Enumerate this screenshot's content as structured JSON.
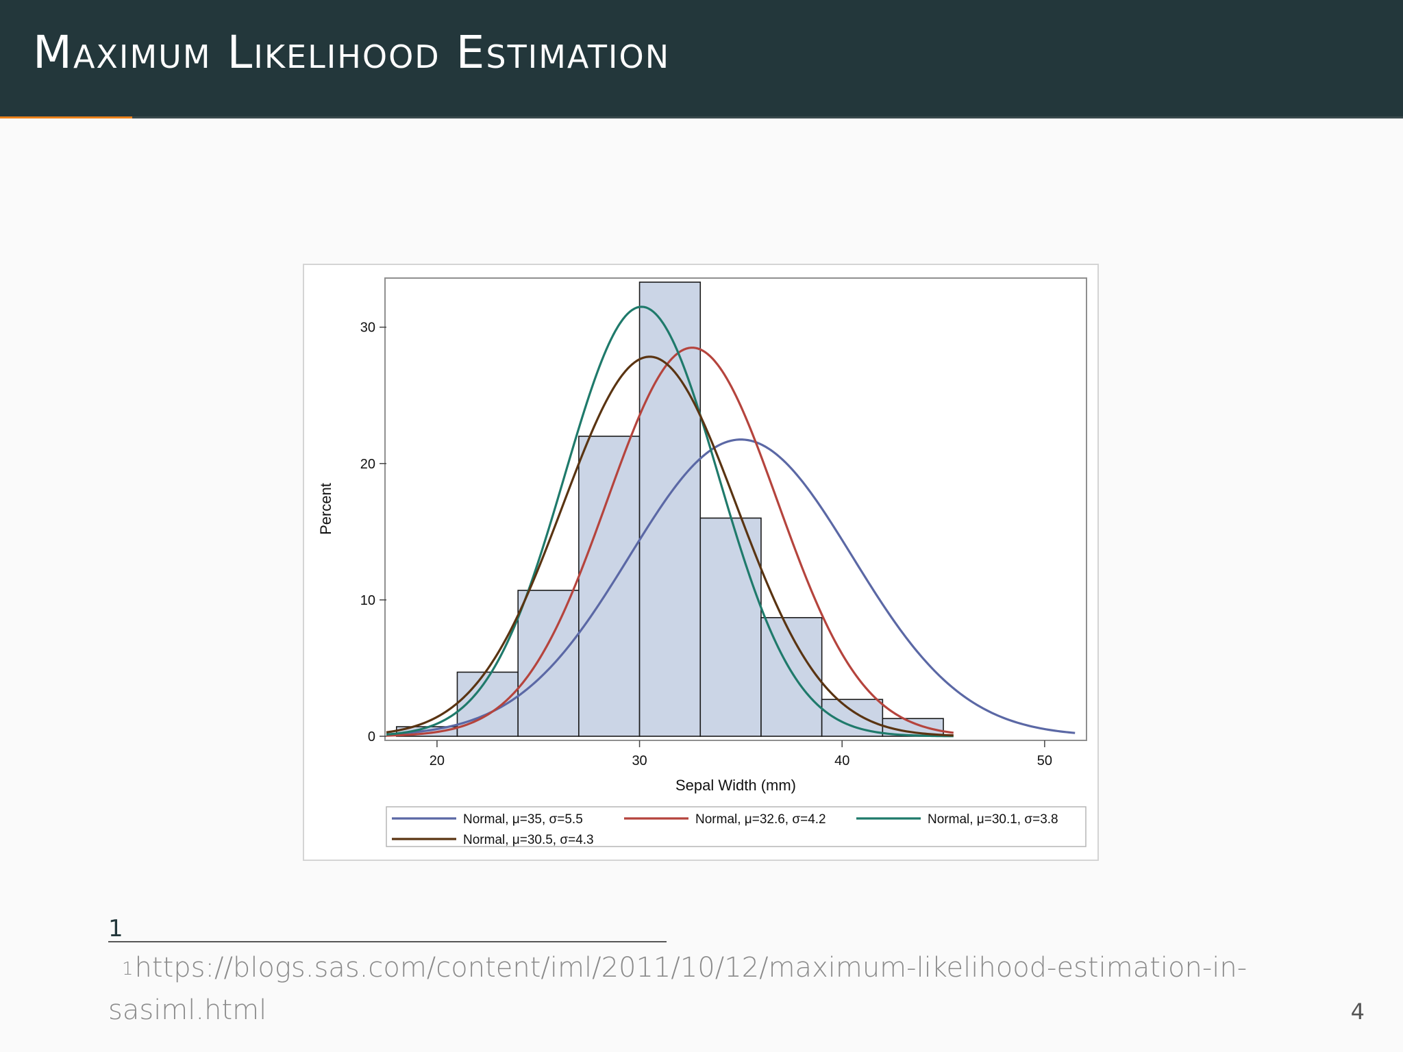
{
  "slide": {
    "title": "Maximum Likelihood Estimation",
    "page_number": "4"
  },
  "footnote": {
    "marker": "1",
    "superscript": "1",
    "text": "https://blogs.sas.com/content/iml/2011/10/12/maximum-likelihood-estimation-in-sasiml.html"
  },
  "colors": {
    "title_bar": "#23373b",
    "progress_accent": "#eb811b",
    "bar_fill": "#cbd5e6"
  },
  "chart_data": {
    "type": "bar",
    "title": "",
    "xlabel": "Sepal Width (mm)",
    "ylabel": "Percent",
    "xlim": [
      17.5,
      52
    ],
    "ylim": [
      0,
      33.5
    ],
    "xticks": [
      20,
      30,
      40,
      50
    ],
    "yticks": [
      0,
      10,
      20,
      30
    ],
    "bin_width": 3,
    "bins": [
      {
        "start": 18,
        "end": 21,
        "value": 0.7
      },
      {
        "start": 21,
        "end": 24,
        "value": 4.7
      },
      {
        "start": 24,
        "end": 27,
        "value": 10.7
      },
      {
        "start": 27,
        "end": 30,
        "value": 22.0
      },
      {
        "start": 30,
        "end": 33,
        "value": 33.3
      },
      {
        "start": 33,
        "end": 36,
        "value": 16.0
      },
      {
        "start": 36,
        "end": 39,
        "value": 8.7
      },
      {
        "start": 39,
        "end": 42,
        "value": 2.7
      },
      {
        "start": 42,
        "end": 45,
        "value": 1.3
      }
    ],
    "series": [
      {
        "name": "Normal, μ=35, σ=5.5",
        "mu": 35,
        "sigma": 5.5,
        "color": "#5b68a5",
        "x_range": [
          17.5,
          51.5
        ]
      },
      {
        "name": "Normal, μ=32.6, σ=4.2",
        "mu": 32.6,
        "sigma": 4.2,
        "color": "#b5443d",
        "x_range": [
          17.5,
          45.5
        ]
      },
      {
        "name": "Normal, μ=30.1, σ=3.8",
        "mu": 30.1,
        "sigma": 3.8,
        "color": "#1f7a6b",
        "x_range": [
          17.5,
          45.5
        ]
      },
      {
        "name": "Normal, μ=30.5, σ=4.3",
        "mu": 30.5,
        "sigma": 4.3,
        "color": "#5a3412",
        "x_range": [
          17.5,
          45.5
        ]
      }
    ],
    "grid": false,
    "legend_position": "bottom"
  }
}
